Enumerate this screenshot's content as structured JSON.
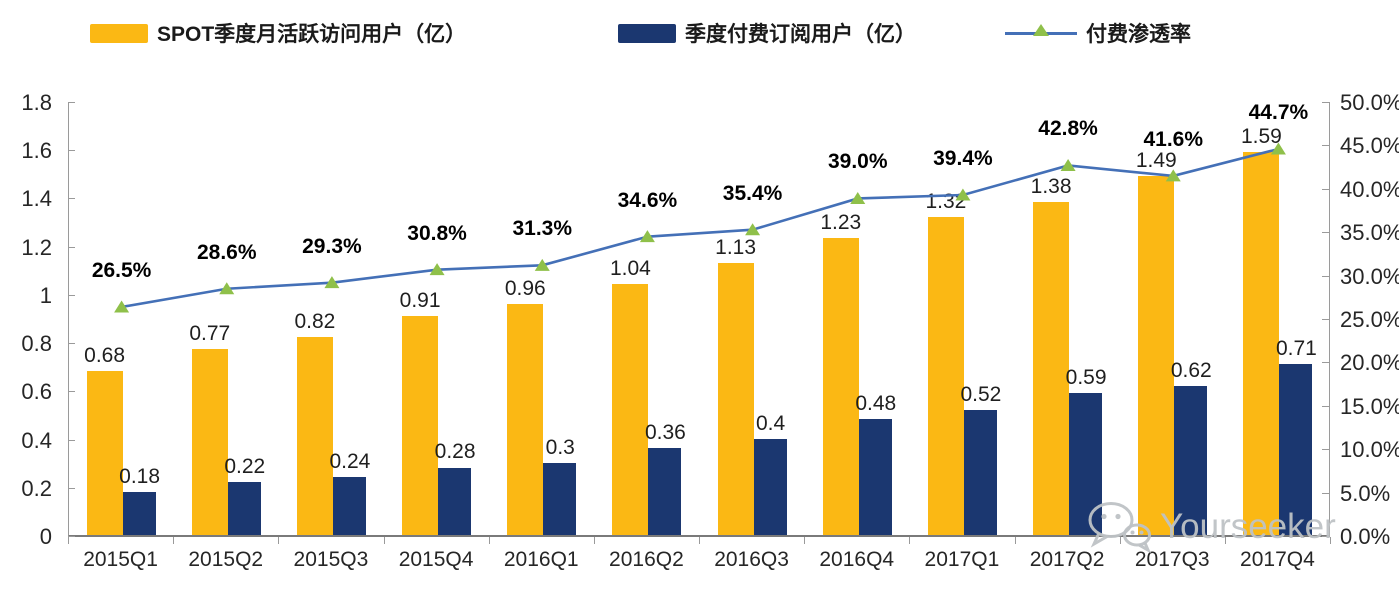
{
  "legend": {
    "items": [
      {
        "label": "SPOT季度月活跃访问用户（亿）",
        "swatch": "bar",
        "color": "#FBB814"
      },
      {
        "label": "季度付费订阅用户（亿）",
        "swatch": "bar",
        "color": "#1B3770"
      },
      {
        "label": "付费渗透率",
        "swatch": "line",
        "color": "#4470B7",
        "marker_color": "#8FC04A"
      }
    ]
  },
  "watermark": {
    "text": "Yourseeker",
    "icon": "wechat-icon"
  },
  "chart_data": {
    "type": "combo-bar-line",
    "categories": [
      "2015Q1",
      "2015Q2",
      "2015Q3",
      "2015Q4",
      "2016Q1",
      "2016Q2",
      "2016Q3",
      "2016Q4",
      "2017Q1",
      "2017Q2",
      "2017Q3",
      "2017Q4"
    ],
    "series": [
      {
        "name": "SPOT季度月活跃访问用户（亿）",
        "type": "bar",
        "axis": "left",
        "color": "#FBB814",
        "values": [
          0.68,
          0.77,
          0.82,
          0.91,
          0.96,
          1.04,
          1.13,
          1.23,
          1.32,
          1.38,
          1.49,
          1.59
        ],
        "labels": [
          "0.68",
          "0.77",
          "0.82",
          "0.91",
          "0.96",
          "1.04",
          "1.13",
          "1.23",
          "1.32",
          "1.38",
          "1.49",
          "1.59"
        ]
      },
      {
        "name": "季度付费订阅用户（亿）",
        "type": "bar",
        "axis": "left",
        "color": "#1B3770",
        "values": [
          0.18,
          0.22,
          0.24,
          0.28,
          0.3,
          0.36,
          0.4,
          0.48,
          0.52,
          0.59,
          0.62,
          0.71
        ],
        "labels": [
          "0.18",
          "0.22",
          "0.24",
          "0.28",
          "0.3",
          "0.36",
          "0.4",
          "0.48",
          "0.52",
          "0.59",
          "0.62",
          "0.71"
        ]
      },
      {
        "name": "付费渗透率",
        "type": "line",
        "axis": "right",
        "color": "#4470B7",
        "marker": "triangle",
        "marker_color": "#8FC04A",
        "values": [
          26.5,
          28.6,
          29.3,
          30.8,
          31.3,
          34.6,
          35.4,
          39.0,
          39.4,
          42.8,
          41.6,
          44.7
        ],
        "labels": [
          "26.5%",
          "28.6%",
          "29.3%",
          "30.8%",
          "31.3%",
          "34.6%",
          "35.4%",
          "39.0%",
          "39.4%",
          "42.8%",
          "41.6%",
          "44.7%"
        ]
      }
    ],
    "left_axis": {
      "min": 0,
      "max": 1.8,
      "step": 0.2,
      "tick_labels": [
        "0",
        "0.2",
        "0.4",
        "0.6",
        "0.8",
        "1",
        "1.2",
        "1.4",
        "1.6",
        "1.8"
      ]
    },
    "right_axis": {
      "min": 0,
      "max": 50,
      "step": 5,
      "tick_labels": [
        "0.0%",
        "5.0%",
        "10.0%",
        "15.0%",
        "20.0%",
        "25.0%",
        "30.0%",
        "35.0%",
        "40.0%",
        "45.0%",
        "50.0%"
      ]
    },
    "grid": false,
    "legend_position": "top"
  }
}
